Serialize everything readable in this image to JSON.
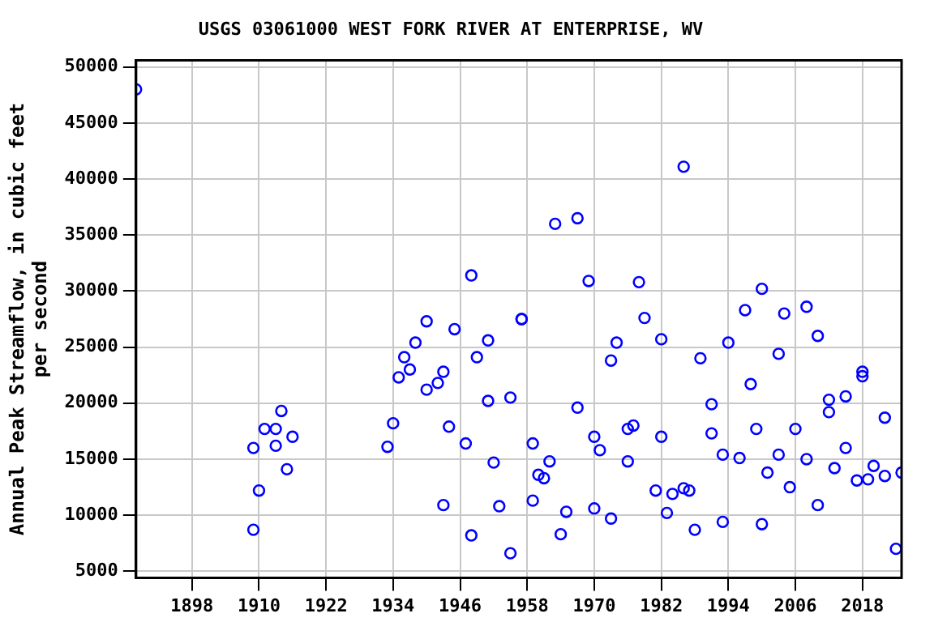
{
  "chart_data": {
    "type": "scatter",
    "title": "USGS 03061000 WEST FORK RIVER AT ENTERPRISE, WV",
    "ylabel": "Annual Peak Streamflow, in cubic feet per second",
    "xlim": [
      1888,
      2025
    ],
    "xticks": [
      1898,
      1910,
      1922,
      1934,
      1946,
      1958,
      1970,
      1982,
      1994,
      2006,
      2018
    ],
    "ylim": [
      4400,
      50600
    ],
    "yticks": [
      5000,
      10000,
      15000,
      20000,
      25000,
      30000,
      35000,
      40000,
      45000,
      50000
    ],
    "grid": true,
    "marker": "circle",
    "series": [
      {
        "color": "#0000ff",
        "x": [
          1888,
          1909,
          1909,
          1910,
          1911,
          1913,
          1913,
          1914,
          1915,
          1916,
          1933,
          1934,
          1935,
          1936,
          1937,
          1938,
          1940,
          1940,
          1942,
          1943,
          1943,
          1944,
          1945,
          1947,
          1948,
          1948,
          1949,
          1951,
          1951,
          1952,
          1953,
          1955,
          1955,
          1957,
          1957,
          1959,
          1959,
          1960,
          1961,
          1962,
          1963,
          1964,
          1965,
          1967,
          1967,
          1969,
          1970,
          1970,
          1971,
          1973,
          1973,
          1974,
          1976,
          1976,
          1977,
          1978,
          1979,
          1981,
          1982,
          1982,
          1983,
          1984,
          1986,
          1986,
          1987,
          1988,
          1989,
          1991,
          1991,
          1993,
          1993,
          1994,
          1996,
          1997,
          1998,
          1999,
          2000,
          2000,
          2001,
          2003,
          2003,
          2004,
          2005,
          2006,
          2008,
          2008,
          2010,
          2010,
          2012,
          2012,
          2013,
          2015,
          2015,
          2017,
          2018,
          2018,
          2019,
          2020,
          2022,
          2022,
          2024,
          2025
        ],
        "values": [
          48000,
          16000,
          8700,
          12200,
          17700,
          16200,
          17700,
          19300,
          14100,
          17000,
          16100,
          18200,
          22300,
          24100,
          23000,
          25400,
          27300,
          21200,
          21800,
          10900,
          22800,
          17900,
          26600,
          16400,
          8200,
          31400,
          24100,
          20200,
          25600,
          14700,
          10800,
          6600,
          20500,
          27500,
          27500,
          16400,
          11300,
          13600,
          13300,
          14800,
          36000,
          8300,
          10300,
          19600,
          36500,
          30900,
          10600,
          17000,
          15800,
          9700,
          23800,
          25400,
          17700,
          14800,
          18000,
          30800,
          27600,
          12200,
          25700,
          17000,
          10200,
          11900,
          12400,
          41100,
          12200,
          8700,
          24000,
          17300,
          19900,
          9400,
          15400,
          25400,
          15100,
          28300,
          21700,
          17700,
          9200,
          30200,
          13800,
          15400,
          24400,
          28000,
          12500,
          17700,
          15000,
          28600,
          26000,
          10900,
          19200,
          20300,
          14200,
          16000,
          20600,
          13100,
          22800,
          22400,
          13200,
          14400,
          13500,
          18700,
          7000,
          13800
        ]
      }
    ]
  }
}
